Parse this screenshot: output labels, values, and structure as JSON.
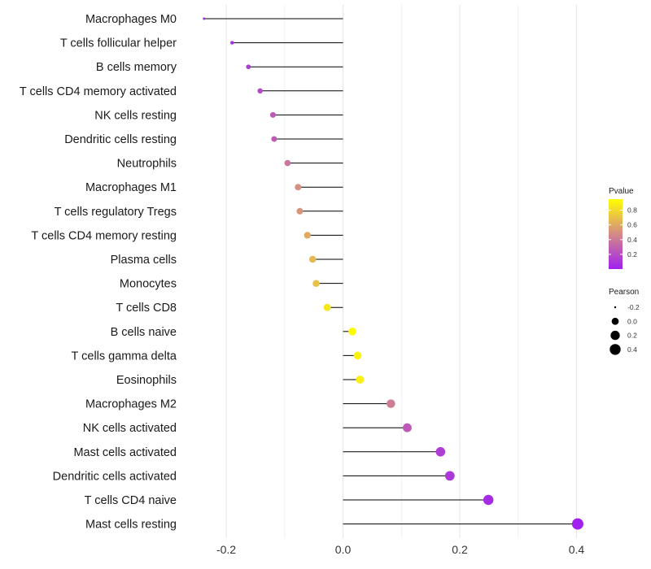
{
  "chart_data": {
    "type": "lollipop",
    "categories": [
      "Macrophages M0",
      "T cells follicular helper",
      "B cells memory",
      "T cells CD4 memory activated",
      "NK cells resting",
      "Dendritic cells resting",
      "Neutrophils",
      "Macrophages M1",
      "T cells regulatory  Tregs",
      "T cells CD4 memory resting",
      "Plasma cells",
      "Monocytes",
      "T cells CD8",
      "B cells naive",
      "T cells gamma delta",
      "Eosinophils",
      "Macrophages M2",
      "NK cells activated",
      "Mast cells activated",
      "Dendritic cells activated",
      "T cells CD4 naive",
      "Mast cells resting"
    ],
    "pearson": [
      -0.238,
      -0.19,
      -0.162,
      -0.142,
      -0.12,
      -0.118,
      -0.095,
      -0.077,
      -0.074,
      -0.061,
      -0.052,
      -0.046,
      -0.027,
      0.016,
      0.025,
      0.029,
      0.082,
      0.11,
      0.167,
      0.183,
      0.249,
      0.402
    ],
    "pvalue": [
      0.03,
      0.06,
      0.12,
      0.18,
      0.25,
      0.26,
      0.38,
      0.5,
      0.52,
      0.6,
      0.66,
      0.7,
      0.85,
      0.93,
      0.9,
      0.89,
      0.42,
      0.25,
      0.13,
      0.11,
      0.05,
      0.001
    ],
    "title": "",
    "xlabel": "",
    "ylabel": "",
    "xlim": [
      -0.26,
      0.43
    ],
    "x_ticks": [
      -0.2,
      0.0,
      0.2,
      0.4
    ],
    "x_tick_labels": [
      "-0.2",
      "0.0",
      "0.2",
      "0.4"
    ],
    "grid": true,
    "legend_color": {
      "title": "Pvalue",
      "ticks": [
        0.2,
        0.4,
        0.6,
        0.8
      ],
      "tick_labels": [
        "0.2",
        "0.4",
        "0.6",
        "0.8"
      ],
      "range": [
        0.0,
        0.95
      ],
      "low_color": "#a020f0",
      "mid_color": "#d48a86",
      "high_color": "#ffff00"
    },
    "legend_size": {
      "title": "Pearson",
      "values": [
        -0.2,
        0.0,
        0.2,
        0.4
      ],
      "labels": [
        "-0.2",
        "0.0",
        "0.2",
        "0.4"
      ]
    },
    "legend_position": "right"
  }
}
